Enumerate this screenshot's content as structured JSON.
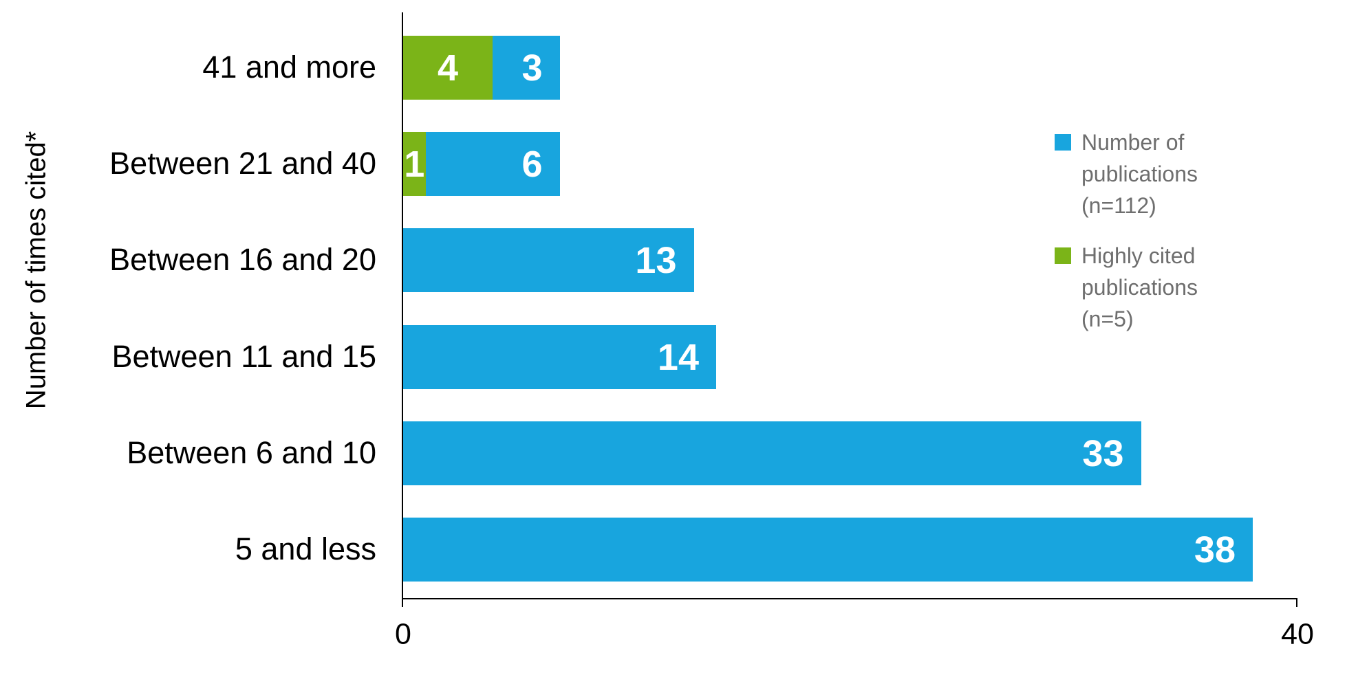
{
  "colors": {
    "blue": "#18A5DE",
    "green": "#7BB418",
    "legend_text": "#6E6E6E",
    "axis_line": "#000000",
    "category_text": "#000000",
    "value_text": "#FFFFFF",
    "background": "#FFFFFF"
  },
  "chart_data": {
    "type": "bar",
    "orientation": "horizontal",
    "stacked": true,
    "title": "",
    "xlabel": "",
    "ylabel": "Number of times cited*",
    "xlim": [
      0,
      40
    ],
    "x_tick_labels": [
      "0",
      "40"
    ],
    "grid": false,
    "legend_position": "right",
    "categories": [
      "41 and more",
      "Between 21 and 40",
      "Between 16 and 20",
      "Between 11 and 15",
      "Between 6 and 10",
      "5 and less"
    ],
    "series": [
      {
        "name": "Highly cited publications (n=5)",
        "color": "#7BB418",
        "values": [
          4,
          1,
          0,
          0,
          0,
          0
        ],
        "label_align": "center"
      },
      {
        "name": "Number of publications (n=112)",
        "color": "#18A5DE",
        "values": [
          3,
          6,
          13,
          14,
          33,
          38
        ],
        "label_align": "inside-end"
      }
    ]
  },
  "legend": {
    "items": [
      {
        "color": "#18A5DE",
        "lines": [
          "Number of",
          "publications",
          "(n=112)"
        ]
      },
      {
        "color": "#7BB418",
        "lines": [
          "Highly cited",
          "publications",
          "(n=5)"
        ]
      }
    ]
  }
}
